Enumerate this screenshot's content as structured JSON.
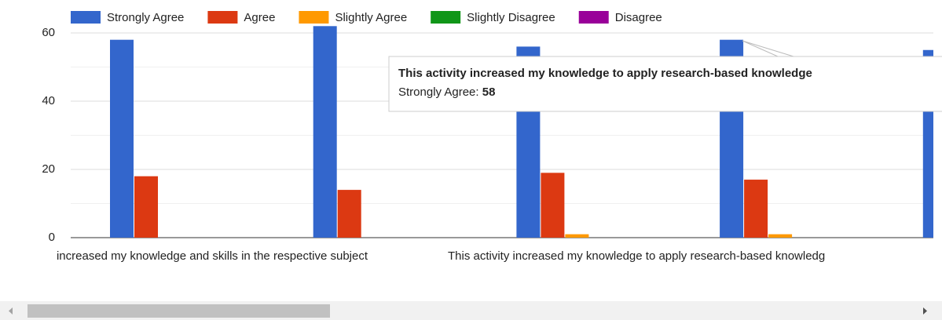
{
  "chart_data": {
    "type": "bar",
    "categories": [
      "increased my knowledge and skills in the respective subject",
      null,
      "This activity increased my knowledge to apply research-based knowledg",
      null,
      null
    ],
    "series": [
      {
        "name": "Strongly Agree",
        "color": "#3366cc",
        "values": [
          58,
          62,
          56,
          58,
          55
        ]
      },
      {
        "name": "Agree",
        "color": "#dc3912",
        "values": [
          18,
          14,
          19,
          17,
          null
        ]
      },
      {
        "name": "Slightly Agree",
        "color": "#ff9900",
        "values": [
          0,
          0,
          1,
          1,
          null
        ]
      },
      {
        "name": "Slightly Disagree",
        "color": "#109618",
        "values": [
          0,
          0,
          0,
          0,
          null
        ]
      },
      {
        "name": "Disagree",
        "color": "#990099",
        "values": [
          0,
          0,
          0,
          0,
          null
        ]
      }
    ],
    "ylim": [
      0,
      70
    ],
    "yticks": [
      0,
      20,
      40,
      60
    ],
    "minor_gridlines": [
      10,
      30,
      50
    ],
    "grid": true,
    "legend": "top",
    "tooltip": {
      "title": "This activity increased my knowledge to apply research-based knowledge",
      "label": "Strongly Agree:",
      "value": 58
    }
  }
}
